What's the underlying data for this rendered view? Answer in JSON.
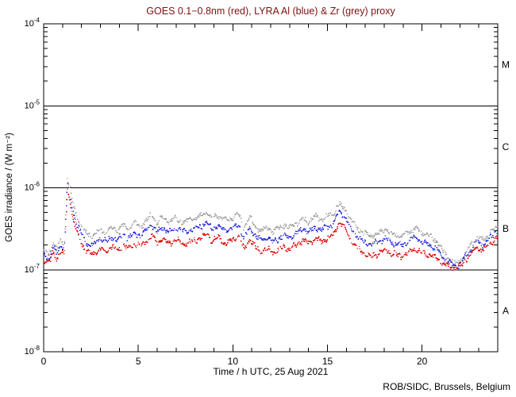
{
  "page": {
    "background": "#ffffff"
  },
  "chart_data": {
    "type": "line",
    "render_style": "dotted-points",
    "title": "GOES 0.1−0.8nm (red), LYRA Al (blue) & Zr (grey) proxy",
    "title_color": "#7c1212",
    "xlabel": "Time / h UTC, 25 Aug 2021",
    "ylabel": "GOES irradiance / (W m⁻²)",
    "credit": "ROB/SIDC, Brussels, Belgium",
    "axis_color": "#000000",
    "xlim": [
      0,
      24
    ],
    "ylim": [
      1e-08,
      0.0001
    ],
    "x_axis": {
      "major_ticks": [
        0,
        5,
        10,
        15,
        20
      ],
      "minor_step": 1
    },
    "y_axis": {
      "scale": "log",
      "decade_labels": [
        {
          "base": "10",
          "exp": "-4",
          "value": 0.0001
        },
        {
          "base": "10",
          "exp": "-5",
          "value": 1e-05
        },
        {
          "base": "10",
          "exp": "-6",
          "value": 1e-06
        },
        {
          "base": "10",
          "exp": "-7",
          "value": 1e-07
        },
        {
          "base": "10",
          "exp": "-8",
          "value": 1e-08
        }
      ]
    },
    "flare_classes": [
      {
        "label": "M",
        "lower": 1e-05,
        "upper": 0.0001
      },
      {
        "label": "C",
        "lower": 1e-06,
        "upper": 1e-05
      },
      {
        "label": "B",
        "lower": 1e-07,
        "upper": 1e-06
      },
      {
        "label": "A",
        "lower": 1e-08,
        "upper": 1e-07
      }
    ],
    "boundary_lines": [
      1e-05,
      1e-06,
      1e-07
    ],
    "value_unit": "W m^-2",
    "value_scale": 1e-07,
    "x": [
      0,
      0.3,
      0.5,
      0.7,
      0.9,
      1.1,
      1.25,
      1.45,
      1.6,
      1.8,
      2,
      2.3,
      2.6,
      3,
      3.3,
      3.6,
      3.9,
      4.2,
      4.5,
      4.8,
      5.1,
      5.4,
      5.7,
      6,
      6.3,
      6.6,
      7,
      7.4,
      7.8,
      8.2,
      8.6,
      8.9,
      9.2,
      9.6,
      10,
      10.3,
      10.6,
      10.9,
      11.2,
      11.5,
      11.8,
      12.1,
      12.4,
      12.7,
      13,
      13.4,
      13.7,
      14,
      14.4,
      14.7,
      15,
      15.3,
      15.6,
      15.9,
      16.2,
      16.5,
      16.9,
      17.3,
      17.7,
      18.1,
      18.5,
      18.9,
      19.3,
      19.6,
      20,
      20.4,
      20.8,
      21.1,
      21.4,
      21.7,
      22,
      22.3,
      22.6,
      22.9,
      23.2,
      23.5,
      23.8,
      24
    ],
    "series": [
      {
        "name": "LYRA Zr proxy",
        "color": "#9c9c9c",
        "values": [
          1.7,
          1.5,
          2.2,
          1.8,
          2.3,
          2.0,
          13.5,
          8.5,
          5.5,
          4.2,
          3.4,
          2.7,
          2.6,
          3.1,
          2.8,
          3.3,
          3.0,
          3.5,
          3.2,
          3.7,
          3.4,
          3.9,
          4.6,
          3.8,
          4.4,
          3.9,
          4.2,
          3.8,
          4.1,
          4.4,
          5.0,
          4.3,
          4.6,
          4.0,
          4.3,
          4.8,
          3.2,
          4.4,
          3.4,
          3.0,
          3.3,
          2.9,
          3.2,
          3.5,
          3.3,
          3.7,
          4.2,
          3.9,
          4.4,
          4.1,
          4.5,
          4.8,
          6.3,
          5.6,
          4.2,
          3.4,
          2.8,
          2.6,
          2.8,
          3.1,
          2.7,
          2.5,
          2.9,
          3.2,
          2.8,
          2.6,
          2.2,
          1.7,
          1.4,
          1.2,
          1.25,
          1.6,
          2.0,
          2.5,
          2.3,
          2.6,
          3.1,
          3.4
        ]
      },
      {
        "name": "LYRA Al proxy",
        "color": "#2222dd",
        "values": [
          1.5,
          1.35,
          1.9,
          1.6,
          2.0,
          1.8,
          11.5,
          7.2,
          4.6,
          3.4,
          2.7,
          2.1,
          2.0,
          2.4,
          2.2,
          2.5,
          2.3,
          2.7,
          2.4,
          2.8,
          2.6,
          3.0,
          3.5,
          2.9,
          3.3,
          2.9,
          3.2,
          2.9,
          3.1,
          3.3,
          3.8,
          3.2,
          3.5,
          3.0,
          3.2,
          3.6,
          2.4,
          3.3,
          2.6,
          2.3,
          2.5,
          2.2,
          2.4,
          2.6,
          2.5,
          2.8,
          3.2,
          2.9,
          3.3,
          3.1,
          3.4,
          3.6,
          5.2,
          4.6,
          3.3,
          2.7,
          2.2,
          2.0,
          2.2,
          2.4,
          2.1,
          1.95,
          2.2,
          2.5,
          2.2,
          2.0,
          1.75,
          1.4,
          1.25,
          1.1,
          1.15,
          1.45,
          1.8,
          2.2,
          2.0,
          2.3,
          2.7,
          3.0
        ]
      },
      {
        "name": "GOES 0.1-0.8nm",
        "color": "#dc0000",
        "values": [
          1.3,
          1.2,
          1.6,
          1.35,
          1.7,
          1.5,
          9.5,
          6.0,
          3.7,
          2.7,
          2.1,
          1.6,
          1.55,
          1.8,
          1.65,
          1.9,
          1.75,
          2.0,
          1.8,
          2.1,
          1.95,
          2.2,
          2.6,
          2.1,
          2.4,
          2.1,
          2.3,
          2.1,
          2.2,
          2.4,
          2.7,
          2.3,
          2.5,
          2.1,
          2.3,
          2.6,
          1.75,
          2.4,
          1.9,
          1.65,
          1.8,
          1.6,
          1.75,
          1.9,
          1.8,
          2.0,
          2.3,
          2.1,
          2.4,
          2.2,
          2.5,
          2.6,
          3.8,
          3.3,
          2.4,
          1.95,
          1.6,
          1.45,
          1.6,
          1.75,
          1.55,
          1.45,
          1.6,
          1.8,
          1.6,
          1.5,
          1.35,
          1.2,
          1.1,
          1.05,
          1.1,
          1.3,
          1.55,
          1.9,
          1.7,
          2.0,
          2.3,
          2.6
        ]
      }
    ]
  }
}
